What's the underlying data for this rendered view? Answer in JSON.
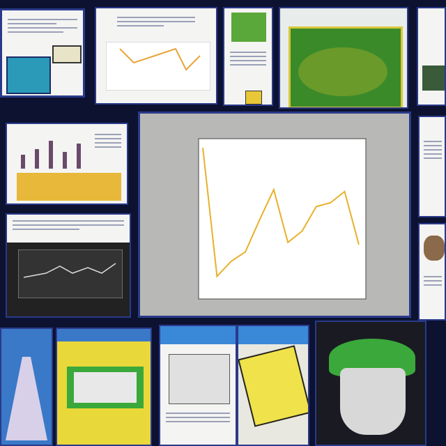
{
  "colors": {
    "background": "#0c1230",
    "central_panel": "#b8b8b6",
    "plot_face": "#ffffff",
    "series_line": "#e8b02a"
  },
  "center_chart": {
    "title": "",
    "xlabel": "",
    "ylabel": ""
  },
  "chart_data": {
    "type": "line",
    "title": "",
    "xlabel": "",
    "ylabel": "",
    "grid": false,
    "x": [
      1,
      2,
      3,
      4,
      5,
      6,
      7,
      8,
      9,
      10,
      11,
      12
    ],
    "series": [
      {
        "values": [
          8.0,
          1.2,
          2.0,
          2.5,
          4.2,
          5.8,
          3.0,
          3.6,
          4.9,
          5.1,
          5.7,
          2.9
        ]
      }
    ],
    "ylim": [
      0,
      8.5
    ]
  },
  "tiles": [
    {
      "kind": "document"
    },
    {
      "kind": "line-chart-document"
    },
    {
      "kind": "document-with-green-photo"
    },
    {
      "kind": "green-leaf-photo"
    },
    {
      "kind": "photo-card"
    },
    {
      "kind": "bar-chart-document"
    },
    {
      "kind": "dark-line-chart-slide"
    },
    {
      "kind": "document"
    },
    {
      "kind": "portrait-card"
    },
    {
      "kind": "blue-slide"
    },
    {
      "kind": "yellow-slide"
    },
    {
      "kind": "blue-document"
    },
    {
      "kind": "yellow-sketch"
    },
    {
      "kind": "green-mushroom-photo"
    }
  ]
}
